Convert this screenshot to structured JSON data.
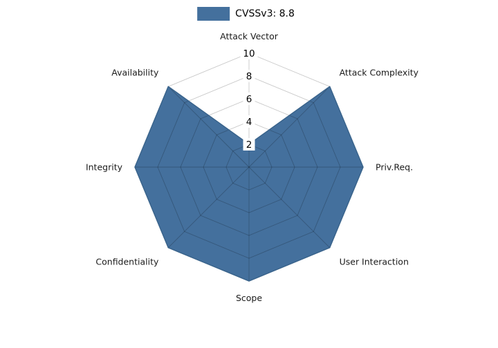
{
  "legend": {
    "label": "CVSSv3: 8.8"
  },
  "chart_data": {
    "type": "radar",
    "title": "",
    "series_name": "CVSSv3: 8.8",
    "categories": [
      "Attack Vector",
      "Attack Complexity",
      "Priv.Req.",
      "User Interaction",
      "Scope",
      "Confidentiality",
      "Integrity",
      "Availability"
    ],
    "values": [
      2,
      10,
      10,
      10,
      10,
      10,
      10,
      10
    ],
    "ticks": [
      2,
      4,
      6,
      8,
      10
    ],
    "rmax": 10,
    "grid": "on",
    "legend_position": "top-center",
    "fill_color": "#44709D",
    "edge_color": "#3A648C",
    "grid_color": "rgba(0,0,0,0.22)",
    "tick_label_color": "#000000",
    "axis_label_color": "#1a1a1a"
  }
}
